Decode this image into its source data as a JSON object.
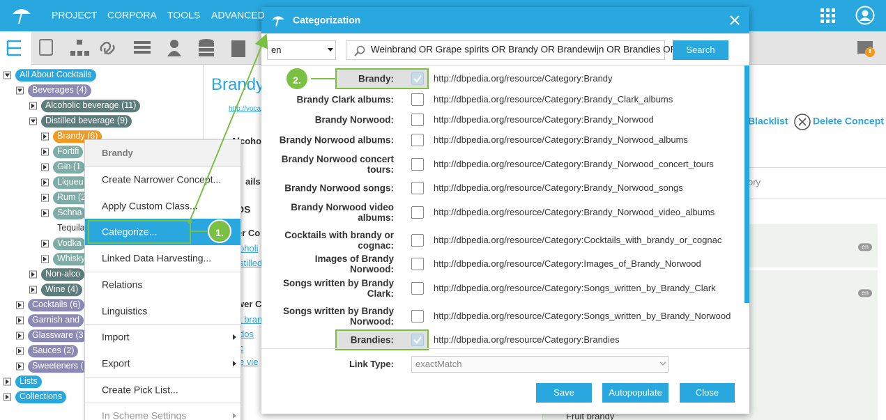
{
  "nav": [
    "PROJECT",
    "CORPORA",
    "TOOLS",
    "ADVANCED"
  ],
  "tree": [
    {
      "label": "All About Cocktails",
      "level": 0,
      "expanded": true,
      "color": "#29a8e0"
    },
    {
      "label": "Beverages (4)",
      "level": 1,
      "expanded": true,
      "color": "#8c89b4"
    },
    {
      "label": "Alcoholic beverage (11)",
      "level": 2,
      "expanded": false,
      "color": "#5d7c7c"
    },
    {
      "label": "Distilled beverage (9)",
      "level": 2,
      "expanded": true,
      "color": "#5d7c7c"
    },
    {
      "label": "Brandy (6)",
      "level": 3,
      "expanded": false,
      "color": "#f39a1e"
    },
    {
      "label": "Fortifi",
      "level": 3,
      "expanded": false,
      "color": "#7eaca6"
    },
    {
      "label": "Gin (1",
      "level": 3,
      "expanded": false,
      "color": "#7eaca6"
    },
    {
      "label": "Liqueu",
      "level": 3,
      "expanded": false,
      "color": "#7eaca6"
    },
    {
      "label": "Rum (2",
      "level": 3,
      "expanded": false,
      "color": "#7eaca6"
    },
    {
      "label": "Schna",
      "level": 3,
      "expanded": false,
      "color": "#7eaca6"
    },
    {
      "label": "Tequila",
      "level": 3
    },
    {
      "label": "Vodka",
      "level": 3,
      "expanded": false,
      "color": "#7eaca6"
    },
    {
      "label": "Whisky",
      "level": 3,
      "expanded": false,
      "color": "#7eaca6"
    },
    {
      "label": "Non-alco",
      "level": 2,
      "expanded": false,
      "color": "#5d7c7c"
    },
    {
      "label": "Wine (4)",
      "level": 2,
      "expanded": false,
      "color": "#5d7c7c"
    },
    {
      "label": "Cocktails (6)",
      "level": 1,
      "expanded": false,
      "color": "#8c89b4"
    },
    {
      "label": "Garnish and",
      "level": 1,
      "expanded": false,
      "color": "#8c89b4"
    },
    {
      "label": "Glassware (3",
      "level": 1,
      "expanded": false,
      "color": "#8c89b4"
    },
    {
      "label": "Sauces (2)",
      "level": 1,
      "expanded": false,
      "color": "#8c89b4"
    },
    {
      "label": "Sweeteners (",
      "level": 1,
      "expanded": false,
      "color": "#8c89b4"
    },
    {
      "label": "Lists",
      "level": 0,
      "expanded": false,
      "color": "#29a8e0"
    },
    {
      "label": "Collections",
      "level": 0,
      "expanded": false,
      "color": "#29a8e0"
    }
  ],
  "background": [
    "Brandy",
    "http://voca",
    "Alcoho",
    "ails",
    "DS",
    "er Co",
    "oholi",
    "stilled",
    "wer C",
    "t bran",
    "dos",
    "c",
    "e vie",
    "Blacklist",
    "Delete Concept",
    "ory",
    "en",
    "en",
    "Fruit brandy"
  ],
  "menu": {
    "title": "Brandy",
    "groups": [
      [
        {
          "label": "Create Narrower Concept..."
        },
        {
          "label": "Apply Custom Class..."
        },
        {
          "label": "Categorize...",
          "active": true
        },
        {
          "label": "Linked Data Harvesting..."
        }
      ],
      [
        {
          "label": "Relations"
        },
        {
          "label": "Linguistics"
        }
      ],
      [
        {
          "label": "Import",
          "submenu": true
        },
        {
          "label": "Export",
          "submenu": true
        }
      ],
      [
        {
          "label": "Create Pick List..."
        }
      ],
      [
        {
          "label": "In Scheme Settings",
          "submenu": true,
          "disabled": true
        }
      ]
    ]
  },
  "steps": [
    "1.",
    "2."
  ],
  "dialog": {
    "title": "Categorization",
    "language": "en",
    "query": "Weinbrand OR Grape spirits OR Brandy OR Brandewijn OR Brandies OR",
    "search_button": "Search",
    "rows": [
      {
        "label": "Brandy:",
        "checked": true,
        "highlighted": true,
        "uri": "http://dbpedia.org/resource/Category:Brandy"
      },
      {
        "label": "Brandy Clark albums:",
        "checked": false,
        "uri": "http://dbpedia.org/resource/Category:Brandy_Clark_albums"
      },
      {
        "label": "Brandy Norwood:",
        "checked": false,
        "uri": "http://dbpedia.org/resource/Category:Brandy_Norwood"
      },
      {
        "label": "Brandy Norwood albums:",
        "checked": false,
        "uri": "http://dbpedia.org/resource/Category:Brandy_Norwood_albums"
      },
      {
        "label": "Brandy Norwood concert tours:",
        "checked": false,
        "uri": "http://dbpedia.org/resource/Category:Brandy_Norwood_concert_tours"
      },
      {
        "label": "Brandy Norwood songs:",
        "checked": false,
        "uri": "http://dbpedia.org/resource/Category:Brandy_Norwood_songs"
      },
      {
        "label": "Brandy Norwood video albums:",
        "checked": false,
        "uri": "http://dbpedia.org/resource/Category:Brandy_Norwood_video_albums"
      },
      {
        "label": "Cocktails with brandy or cognac:",
        "checked": false,
        "uri": "http://dbpedia.org/resource/Category:Cocktails_with_brandy_or_cognac"
      },
      {
        "label": "Images of Brandy Norwood:",
        "checked": false,
        "uri": "http://dbpedia.org/resource/Category:Images_of_Brandy_Norwood"
      },
      {
        "label": "Songs written by Brandy Clark:",
        "checked": false,
        "uri": "http://dbpedia.org/resource/Category:Songs_written_by_Brandy_Clark"
      },
      {
        "label": "Songs written by Brandy Norwood:",
        "checked": false,
        "uri": "http://dbpedia.org/resource/Category:Songs_written_by_Brandy_Norwood"
      },
      {
        "label": "Brandies:",
        "checked": true,
        "highlighted": true,
        "uri": "http://dbpedia.org/resource/Category:Brandies"
      }
    ],
    "link_type_label": "Link Type:",
    "link_type": "exactMatch",
    "buttons": [
      "Save",
      "Autopopulate",
      "Close"
    ]
  }
}
